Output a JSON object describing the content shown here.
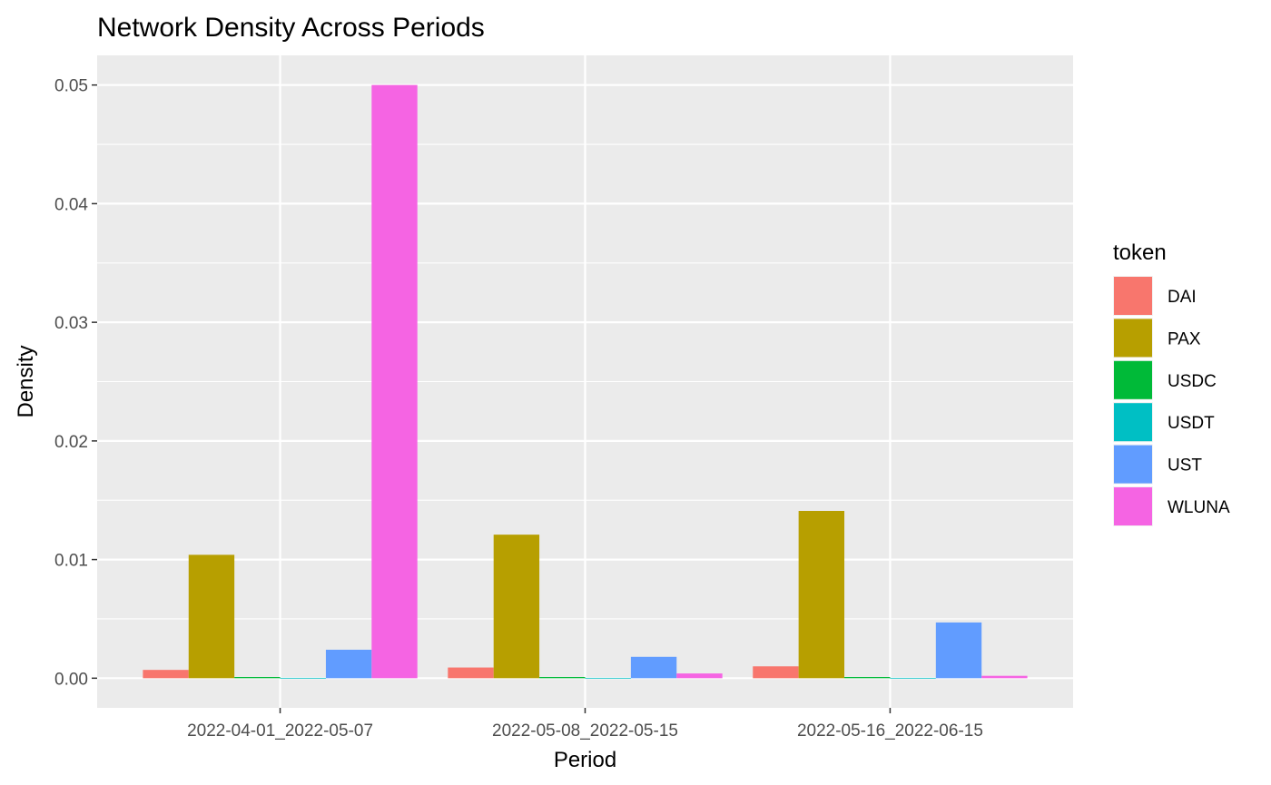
{
  "chart_data": {
    "type": "bar",
    "title": "Network Density Across Periods",
    "xlabel": "Period",
    "ylabel": "Density",
    "categories": [
      "2022-04-01_2022-05-07",
      "2022-05-08_2022-05-15",
      "2022-05-16_2022-06-15"
    ],
    "ylim": [
      -0.0025,
      0.0525
    ],
    "yticks": [
      0.0,
      0.01,
      0.02,
      0.03,
      0.04,
      0.05
    ],
    "ytick_labels": [
      "0.00",
      "0.01",
      "0.02",
      "0.03",
      "0.04",
      "0.05"
    ],
    "grid": true,
    "legend": {
      "title": "token",
      "position": "right"
    },
    "series": [
      {
        "name": "DAI",
        "color": "#F8766D",
        "values": [
          0.0007,
          0.0009,
          0.001
        ]
      },
      {
        "name": "PAX",
        "color": "#B79F00",
        "values": [
          0.0104,
          0.0121,
          0.0141
        ]
      },
      {
        "name": "USDC",
        "color": "#00BA38",
        "values": [
          0.0001,
          0.0001,
          0.0001
        ]
      },
      {
        "name": "USDT",
        "color": "#00BFC4",
        "values": [
          3e-05,
          3e-05,
          3e-05
        ]
      },
      {
        "name": "UST",
        "color": "#619CFF",
        "values": [
          0.0024,
          0.0018,
          0.0047
        ]
      },
      {
        "name": "WLUNA",
        "color": "#F564E3",
        "values": [
          0.05,
          0.0004,
          0.0002
        ]
      }
    ]
  }
}
